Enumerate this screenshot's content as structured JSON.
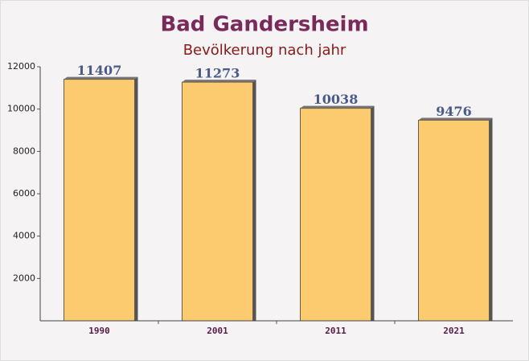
{
  "chart_data": {
    "type": "bar",
    "title": "Bad Gandersheim",
    "subtitle": "Bevölkerung nach jahr",
    "categories": [
      "1990",
      "2001",
      "2011",
      "2021"
    ],
    "values": [
      11407,
      11273,
      10038,
      9476
    ],
    "color": "#fdc660",
    "ylim": [
      0,
      12000
    ],
    "yticks": [
      2000,
      4000,
      6000,
      8000,
      10000,
      12000
    ]
  }
}
